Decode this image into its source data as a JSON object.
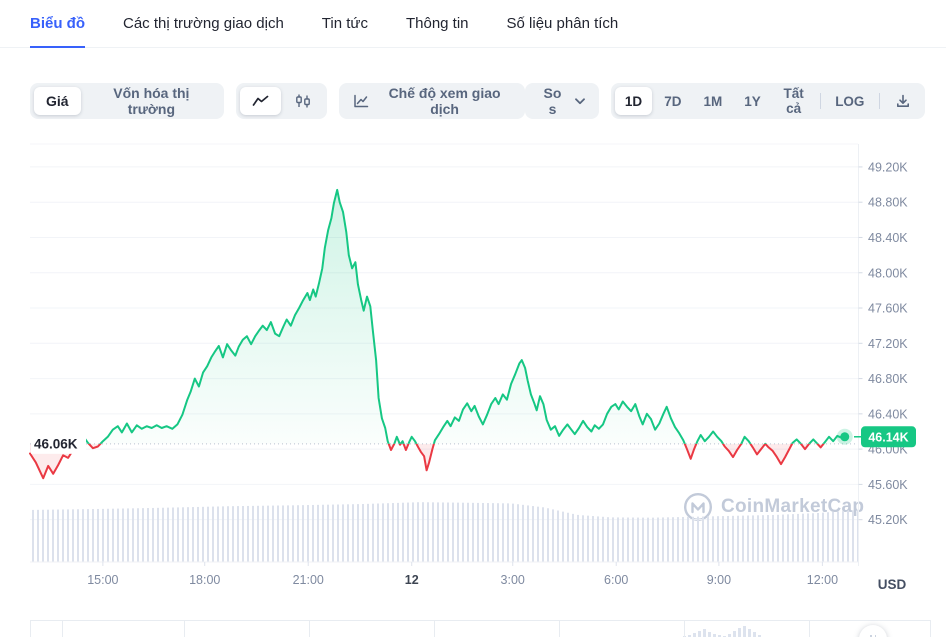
{
  "tabs": {
    "items": [
      {
        "label": "Biểu đồ",
        "active": true
      },
      {
        "label": "Các thị trường giao dịch",
        "active": false
      },
      {
        "label": "Tin tức",
        "active": false
      },
      {
        "label": "Thông tin",
        "active": false
      },
      {
        "label": "Số liệu phân tích",
        "active": false
      }
    ]
  },
  "toolbar": {
    "metric_toggle": {
      "options": [
        {
          "label": "Giá",
          "active": true
        },
        {
          "label": "Vốn hóa thị trường",
          "active": false
        }
      ]
    },
    "chart_type_toggle": {
      "options": [
        {
          "icon": "line-chart-icon",
          "active": true
        },
        {
          "icon": "candlestick-icon",
          "active": false
        }
      ]
    },
    "trading_view_label": "Chế độ xem giao dịch",
    "compare_label": "So s",
    "ranges": [
      {
        "label": "1D",
        "active": true
      },
      {
        "label": "7D",
        "active": false
      },
      {
        "label": "1M",
        "active": false
      },
      {
        "label": "1Y",
        "active": false
      },
      {
        "label": "Tất cả",
        "active": false
      },
      {
        "label": "LOG",
        "active": false
      }
    ],
    "download_icon": "download-icon"
  },
  "chart": {
    "open_price_label": "46.06K",
    "current_price_label": "46.14K",
    "unit_label": "USD",
    "watermark": "CoinMarketCap",
    "colors": {
      "up": "#16c784",
      "down": "#ea3943",
      "accent": "#3861fb",
      "axis_text": "#7f8aa0",
      "grid": "#f2f4f8",
      "volume": "#dce1ec",
      "watermark": "#c2cad9"
    }
  },
  "chart_data": {
    "type": "line",
    "ylabel": "USD",
    "ylim": [
      44.72,
      49.46
    ],
    "open_price": 46.06,
    "current_price": 46.14,
    "y_ticks": [
      {
        "label": "49.20K",
        "v": 49.2
      },
      {
        "label": "48.80K",
        "v": 48.8
      },
      {
        "label": "48.40K",
        "v": 48.4
      },
      {
        "label": "48.00K",
        "v": 48.0
      },
      {
        "label": "47.60K",
        "v": 47.6
      },
      {
        "label": "47.20K",
        "v": 47.2
      },
      {
        "label": "46.80K",
        "v": 46.8
      },
      {
        "label": "46.40K",
        "v": 46.4
      },
      {
        "label": "46.00K",
        "v": 46.0
      },
      {
        "label": "45.60K",
        "v": 45.6
      },
      {
        "label": "45.20K",
        "v": 45.2
      }
    ],
    "x_ticks": [
      {
        "label": "15:00",
        "f": 0.088,
        "bold": false
      },
      {
        "label": "18:00",
        "f": 0.211,
        "bold": false
      },
      {
        "label": "21:00",
        "f": 0.336,
        "bold": false
      },
      {
        "label": "12",
        "f": 0.461,
        "bold": true
      },
      {
        "label": "3:00",
        "f": 0.583,
        "bold": false
      },
      {
        "label": "6:00",
        "f": 0.708,
        "bold": false
      },
      {
        "label": "9:00",
        "f": 0.832,
        "bold": false
      },
      {
        "label": "12:00",
        "f": 0.957,
        "bold": false
      }
    ],
    "price_points": [
      [
        0.0,
        45.95
      ],
      [
        0.007,
        45.85
      ],
      [
        0.016,
        45.67
      ],
      [
        0.022,
        45.81
      ],
      [
        0.028,
        45.72
      ],
      [
        0.034,
        45.82
      ],
      [
        0.04,
        45.93
      ],
      [
        0.046,
        45.9
      ],
      [
        0.052,
        45.99
      ],
      [
        0.058,
        46.06
      ],
      [
        0.064,
        46.15
      ],
      [
        0.07,
        46.07
      ],
      [
        0.076,
        46.01
      ],
      [
        0.082,
        46.03
      ],
      [
        0.088,
        46.09
      ],
      [
        0.094,
        46.14
      ],
      [
        0.1,
        46.22
      ],
      [
        0.106,
        46.26
      ],
      [
        0.111,
        46.19
      ],
      [
        0.117,
        46.29
      ],
      [
        0.123,
        46.19
      ],
      [
        0.129,
        46.27
      ],
      [
        0.135,
        46.23
      ],
      [
        0.141,
        46.26
      ],
      [
        0.147,
        46.24
      ],
      [
        0.153,
        46.27
      ],
      [
        0.159,
        46.24
      ],
      [
        0.165,
        46.26
      ],
      [
        0.172,
        46.23
      ],
      [
        0.178,
        46.28
      ],
      [
        0.184,
        46.39
      ],
      [
        0.19,
        46.56
      ],
      [
        0.194,
        46.65
      ],
      [
        0.199,
        46.8
      ],
      [
        0.204,
        46.71
      ],
      [
        0.209,
        46.87
      ],
      [
        0.214,
        46.94
      ],
      [
        0.219,
        47.04
      ],
      [
        0.223,
        47.1
      ],
      [
        0.228,
        47.17
      ],
      [
        0.233,
        47.04
      ],
      [
        0.238,
        47.19
      ],
      [
        0.243,
        47.12
      ],
      [
        0.248,
        47.06
      ],
      [
        0.252,
        47.16
      ],
      [
        0.257,
        47.24
      ],
      [
        0.262,
        47.28
      ],
      [
        0.267,
        47.19
      ],
      [
        0.272,
        47.28
      ],
      [
        0.277,
        47.35
      ],
      [
        0.281,
        47.4
      ],
      [
        0.286,
        47.35
      ],
      [
        0.291,
        47.44
      ],
      [
        0.296,
        47.31
      ],
      [
        0.301,
        47.28
      ],
      [
        0.306,
        47.39
      ],
      [
        0.31,
        47.47
      ],
      [
        0.315,
        47.4
      ],
      [
        0.32,
        47.52
      ],
      [
        0.325,
        47.6
      ],
      [
        0.33,
        47.69
      ],
      [
        0.335,
        47.77
      ],
      [
        0.338,
        47.69
      ],
      [
        0.342,
        47.81
      ],
      [
        0.345,
        47.73
      ],
      [
        0.349,
        47.88
      ],
      [
        0.353,
        48.05
      ],
      [
        0.356,
        48.28
      ],
      [
        0.36,
        48.48
      ],
      [
        0.364,
        48.62
      ],
      [
        0.367,
        48.79
      ],
      [
        0.371,
        48.94
      ],
      [
        0.374,
        48.8
      ],
      [
        0.378,
        48.69
      ],
      [
        0.382,
        48.46
      ],
      [
        0.385,
        48.2
      ],
      [
        0.389,
        48.05
      ],
      [
        0.393,
        48.12
      ],
      [
        0.396,
        47.87
      ],
      [
        0.4,
        47.69
      ],
      [
        0.403,
        47.57
      ],
      [
        0.407,
        47.73
      ],
      [
        0.411,
        47.62
      ],
      [
        0.414,
        47.35
      ],
      [
        0.418,
        47.01
      ],
      [
        0.421,
        46.58
      ],
      [
        0.425,
        46.35
      ],
      [
        0.429,
        46.24
      ],
      [
        0.432,
        46.09
      ],
      [
        0.436,
        45.99
      ],
      [
        0.44,
        46.06
      ],
      [
        0.443,
        46.14
      ],
      [
        0.447,
        46.05
      ],
      [
        0.45,
        46.09
      ],
      [
        0.454,
        45.99
      ],
      [
        0.458,
        46.08
      ],
      [
        0.461,
        46.14
      ],
      [
        0.465,
        46.09
      ],
      [
        0.469,
        46.02
      ],
      [
        0.472,
        45.97
      ],
      [
        0.476,
        45.92
      ],
      [
        0.479,
        45.76
      ],
      [
        0.482,
        45.85
      ],
      [
        0.486,
        46.0
      ],
      [
        0.489,
        46.1
      ],
      [
        0.494,
        46.17
      ],
      [
        0.499,
        46.25
      ],
      [
        0.504,
        46.32
      ],
      [
        0.508,
        46.26
      ],
      [
        0.513,
        46.36
      ],
      [
        0.518,
        46.32
      ],
      [
        0.523,
        46.45
      ],
      [
        0.528,
        46.52
      ],
      [
        0.533,
        46.43
      ],
      [
        0.537,
        46.49
      ],
      [
        0.542,
        46.37
      ],
      [
        0.547,
        46.28
      ],
      [
        0.552,
        46.39
      ],
      [
        0.557,
        46.51
      ],
      [
        0.562,
        46.58
      ],
      [
        0.566,
        46.51
      ],
      [
        0.571,
        46.62
      ],
      [
        0.576,
        46.56
      ],
      [
        0.581,
        46.74
      ],
      [
        0.586,
        46.85
      ],
      [
        0.591,
        46.97
      ],
      [
        0.594,
        47.01
      ],
      [
        0.598,
        46.92
      ],
      [
        0.601,
        46.78
      ],
      [
        0.605,
        46.62
      ],
      [
        0.609,
        46.52
      ],
      [
        0.612,
        46.44
      ],
      [
        0.616,
        46.6
      ],
      [
        0.62,
        46.51
      ],
      [
        0.624,
        46.33
      ],
      [
        0.629,
        46.22
      ],
      [
        0.634,
        46.26
      ],
      [
        0.639,
        46.15
      ],
      [
        0.644,
        46.22
      ],
      [
        0.649,
        46.28
      ],
      [
        0.653,
        46.23
      ],
      [
        0.658,
        46.17
      ],
      [
        0.663,
        46.24
      ],
      [
        0.668,
        46.32
      ],
      [
        0.673,
        46.25
      ],
      [
        0.678,
        46.2
      ],
      [
        0.682,
        46.27
      ],
      [
        0.687,
        46.23
      ],
      [
        0.692,
        46.28
      ],
      [
        0.697,
        46.4
      ],
      [
        0.702,
        46.48
      ],
      [
        0.707,
        46.51
      ],
      [
        0.711,
        46.45
      ],
      [
        0.716,
        46.54
      ],
      [
        0.721,
        46.48
      ],
      [
        0.726,
        46.43
      ],
      [
        0.731,
        46.51
      ],
      [
        0.736,
        46.37
      ],
      [
        0.74,
        46.28
      ],
      [
        0.745,
        46.4
      ],
      [
        0.75,
        46.34
      ],
      [
        0.755,
        46.22
      ],
      [
        0.76,
        46.29
      ],
      [
        0.765,
        46.4
      ],
      [
        0.769,
        46.48
      ],
      [
        0.774,
        46.35
      ],
      [
        0.779,
        46.25
      ],
      [
        0.784,
        46.18
      ],
      [
        0.789,
        46.1
      ],
      [
        0.793,
        46.01
      ],
      [
        0.798,
        45.89
      ],
      [
        0.802,
        46.0
      ],
      [
        0.806,
        46.09
      ],
      [
        0.81,
        46.16
      ],
      [
        0.815,
        46.09
      ],
      [
        0.82,
        46.14
      ],
      [
        0.825,
        46.2
      ],
      [
        0.83,
        46.14
      ],
      [
        0.835,
        46.09
      ],
      [
        0.839,
        46.03
      ],
      [
        0.844,
        45.98
      ],
      [
        0.849,
        45.91
      ],
      [
        0.854,
        45.99
      ],
      [
        0.859,
        46.06
      ],
      [
        0.863,
        46.14
      ],
      [
        0.868,
        46.09
      ],
      [
        0.873,
        46.02
      ],
      [
        0.878,
        45.94
      ],
      [
        0.883,
        46.0
      ],
      [
        0.888,
        46.06
      ],
      [
        0.892,
        46.02
      ],
      [
        0.897,
        45.98
      ],
      [
        0.902,
        45.91
      ],
      [
        0.907,
        45.83
      ],
      [
        0.912,
        45.91
      ],
      [
        0.917,
        46.0
      ],
      [
        0.921,
        46.07
      ],
      [
        0.926,
        46.11
      ],
      [
        0.931,
        46.06
      ],
      [
        0.936,
        46.0
      ],
      [
        0.941,
        46.06
      ],
      [
        0.946,
        46.11
      ],
      [
        0.95,
        46.07
      ],
      [
        0.955,
        46.02
      ],
      [
        0.96,
        46.08
      ],
      [
        0.965,
        46.14
      ],
      [
        0.97,
        46.09
      ],
      [
        0.975,
        46.15
      ],
      [
        0.98,
        46.13
      ],
      [
        0.984,
        46.14
      ]
    ],
    "volume_envelope": [
      [
        0,
        0.84
      ],
      [
        0.08,
        0.855
      ],
      [
        0.16,
        0.875
      ],
      [
        0.24,
        0.9
      ],
      [
        0.32,
        0.915
      ],
      [
        0.4,
        0.935
      ],
      [
        0.47,
        0.965
      ],
      [
        0.53,
        0.955
      ],
      [
        0.58,
        0.945
      ],
      [
        0.62,
        0.88
      ],
      [
        0.66,
        0.76
      ],
      [
        0.7,
        0.72
      ],
      [
        0.75,
        0.715
      ],
      [
        0.8,
        0.73
      ],
      [
        0.85,
        0.745
      ],
      [
        0.9,
        0.76
      ],
      [
        0.95,
        0.79
      ],
      [
        1,
        0.84
      ]
    ],
    "preview_bars": [
      2,
      3,
      5,
      7,
      9,
      6,
      4,
      3,
      2,
      4,
      7,
      10,
      12,
      9,
      6,
      3
    ]
  }
}
